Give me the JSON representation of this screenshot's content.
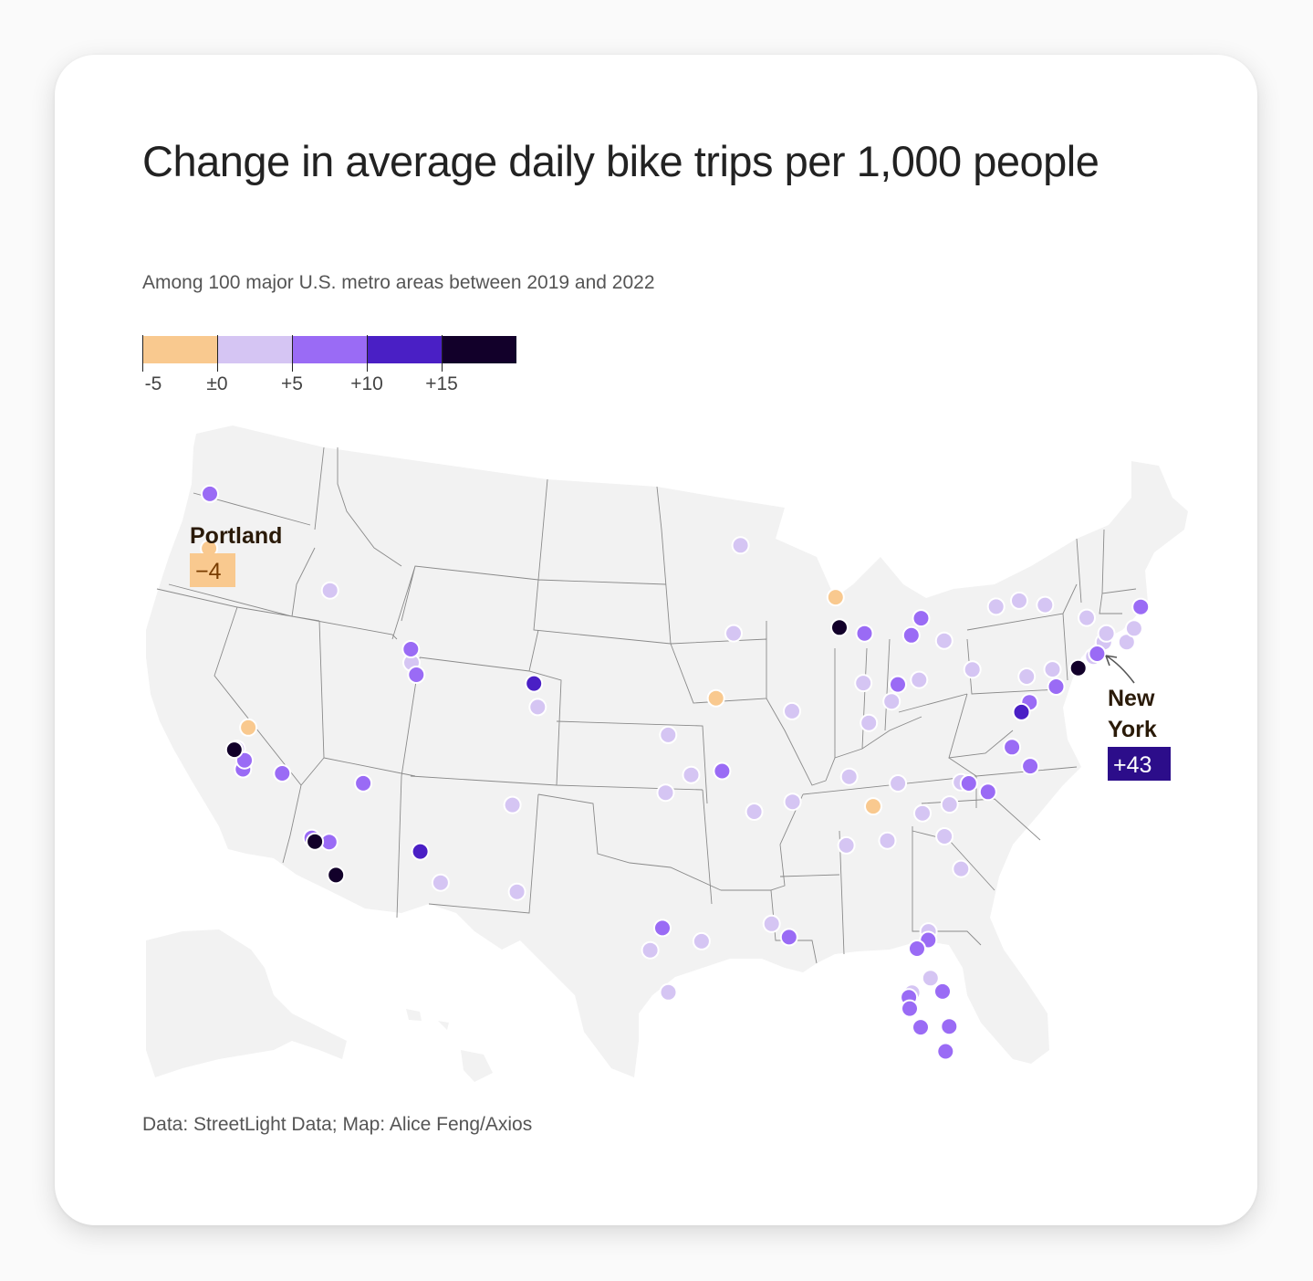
{
  "title": "Change in average daily bike trips per 1,000 people",
  "subtitle": "Among 100 major U.S. metro areas between 2019 and 2022",
  "source": "Data: StreetLight Data; Map: Alice Feng/Axios",
  "legend": {
    "bins": [
      {
        "color": "#f9c98f"
      },
      {
        "color": "#d5c5f3"
      },
      {
        "color": "#9a6bf5"
      },
      {
        "color": "#4a1fc5"
      },
      {
        "color": "#12002a"
      }
    ],
    "ticks": [
      "-5",
      "±0",
      "+5",
      "+10",
      "+15"
    ]
  },
  "colors": {
    "land": "#f2f2f2",
    "border": "#8a8a8a",
    "decline": "#f9c98f",
    "slight": "#d5c5f3",
    "moderate": "#9a6bf5",
    "high": "#4a1fc5",
    "highest": "#12002a"
  },
  "callouts": {
    "portland": {
      "name": "Portland",
      "value": "−4"
    },
    "newyork": {
      "name_line1": "New",
      "name_line2": "York",
      "value": "+43"
    }
  },
  "chart_data": {
    "type": "scatter",
    "series": [
      {
        "class": "decline",
        "values": [
          [
            -122.68,
            45.52
          ],
          [
            -121.49,
            38.58
          ],
          [
            -87.9,
            43.04
          ],
          [
            -94.58,
            39.1
          ],
          [
            -85.31,
            35.05
          ]
        ]
      },
      {
        "class": "slight",
        "values": [
          [
            -116.2,
            43.62
          ],
          [
            -111.9,
            40.7
          ],
          [
            -122.27,
            37.8
          ],
          [
            -104.82,
            38.83
          ],
          [
            -106.5,
            35.1
          ],
          [
            -106.44,
            31.76
          ],
          [
            -110.97,
            32.22
          ],
          [
            -97.5,
            35.47
          ],
          [
            -97.33,
            37.69
          ],
          [
            -96.0,
            36.15
          ],
          [
            -93.26,
            44.98
          ],
          [
            -93.6,
            41.6
          ],
          [
            -92.29,
            34.75
          ],
          [
            -90.05,
            35.15
          ],
          [
            -90.2,
            38.63
          ],
          [
            -91.14,
            30.45
          ],
          [
            -86.78,
            36.16
          ],
          [
            -86.8,
            33.52
          ],
          [
            -84.39,
            33.75
          ],
          [
            -83.92,
            35.96
          ],
          [
            -85.76,
            38.25
          ],
          [
            -86.16,
            39.77
          ],
          [
            -84.5,
            39.1
          ],
          [
            -82.99,
            39.96
          ],
          [
            -81.68,
            41.5
          ],
          [
            -79.99,
            40.44
          ],
          [
            -78.88,
            42.89
          ],
          [
            -77.61,
            43.16
          ],
          [
            -76.15,
            43.05
          ],
          [
            -73.76,
            42.65
          ],
          [
            -72.68,
            41.76
          ],
          [
            -71.4,
            41.82
          ],
          [
            -71.06,
            42.36
          ],
          [
            -72.58,
            42.1
          ],
          [
            -73.2,
            41.18
          ],
          [
            -75.45,
            40.6
          ],
          [
            -76.88,
            40.27
          ],
          [
            -80.84,
            35.23
          ],
          [
            -80.25,
            36.1
          ],
          [
            -79.93,
            32.78
          ],
          [
            -81.03,
            34.0
          ],
          [
            -82.4,
            34.85
          ],
          [
            -81.38,
            28.54
          ],
          [
            -81.66,
            30.33
          ],
          [
            -82.46,
            27.95
          ],
          [
            -98.49,
            29.42
          ],
          [
            -95.37,
            29.76
          ],
          [
            -97.4,
            27.8
          ]
        ]
      },
      {
        "class": "moderate",
        "values": [
          [
            -122.33,
            47.6
          ],
          [
            -111.89,
            41.22
          ],
          [
            -111.67,
            40.23
          ],
          [
            -122.03,
            37.0
          ],
          [
            -121.89,
            37.34
          ],
          [
            -119.79,
            36.74
          ],
          [
            -118.4,
            34.2
          ],
          [
            -117.4,
            34.0
          ],
          [
            -115.14,
            36.17
          ],
          [
            -97.74,
            30.27
          ],
          [
            -94.2,
            36.3
          ],
          [
            -90.07,
            29.95
          ],
          [
            -86.2,
            41.68
          ],
          [
            -83.05,
            42.33
          ],
          [
            -83.55,
            41.66
          ],
          [
            -84.19,
            39.76
          ],
          [
            -75.16,
            39.95
          ],
          [
            -76.61,
            39.29
          ],
          [
            -77.43,
            37.54
          ],
          [
            -76.29,
            36.85
          ],
          [
            -78.64,
            35.78
          ],
          [
            -79.79,
            36.07
          ],
          [
            -80.19,
            25.76
          ],
          [
            -82.64,
            27.77
          ],
          [
            -81.82,
            26.64
          ],
          [
            -80.06,
            26.72
          ],
          [
            -80.6,
            28.05
          ],
          [
            -81.65,
            30.0
          ],
          [
            -82.3,
            29.65
          ],
          [
            -82.55,
            27.34
          ],
          [
            -73.0,
            41.3
          ],
          [
            -70.8,
            43.2
          ]
        ]
      },
      {
        "class": "high",
        "values": [
          [
            -104.99,
            39.74
          ],
          [
            -112.07,
            33.45
          ],
          [
            -77.03,
            38.9
          ]
        ]
      },
      {
        "class": "highest",
        "values": [
          [
            -122.42,
            37.77
          ],
          [
            -118.24,
            34.05
          ],
          [
            -117.16,
            32.72
          ],
          [
            -87.63,
            41.88
          ],
          [
            -74.0,
            40.71
          ]
        ]
      }
    ],
    "annotations": [
      {
        "name": "Portland",
        "value": "−4"
      },
      {
        "name": "New York",
        "value": "+43"
      }
    ]
  }
}
